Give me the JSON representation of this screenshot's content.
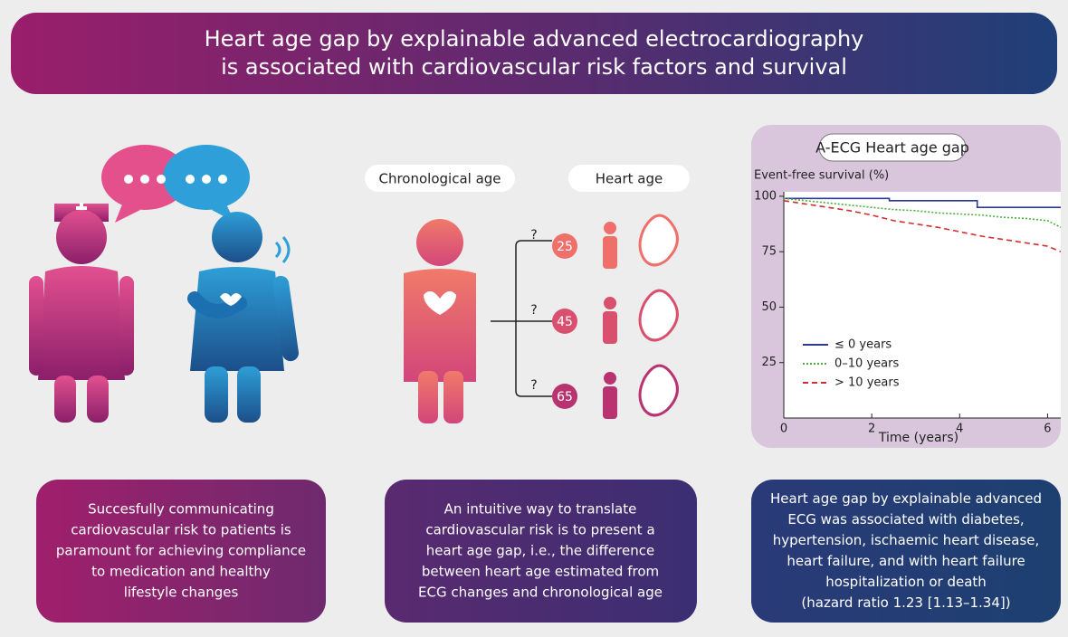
{
  "header": {
    "title_lines": [
      "Heart age gap by explainable advanced electrocardiography",
      "is associated with cardiovascular risk factors and survival"
    ]
  },
  "middle": {
    "chronological_label": "Chronological age",
    "heart_label": "Heart age",
    "branch_label": "?",
    "heart_ages": [
      25,
      45,
      65
    ]
  },
  "chart": {
    "type": "line",
    "title": "A-ECG Heart age gap",
    "y_label": "Event-free survival (%)",
    "x_label": "Time (years)",
    "xlim": [
      0,
      6.3
    ],
    "xticks": [
      0,
      2,
      4,
      6
    ],
    "ylim": [
      0,
      102
    ],
    "yticks": [
      25,
      50,
      75,
      100
    ],
    "series": [
      {
        "name": "≤ 0 years",
        "color": "#2b3a8f",
        "dash": "solid",
        "x": [
          0,
          2.4,
          2.4,
          4.4,
          4.4,
          6.3
        ],
        "values": [
          99,
          99,
          98,
          98,
          95,
          95
        ]
      },
      {
        "name": "0–10 years",
        "color": "#4caf3f",
        "dash": "dotted",
        "x": [
          0,
          0.5,
          1,
          1.5,
          2,
          2.5,
          3,
          3.5,
          4,
          4.5,
          5,
          5.5,
          6,
          6.3
        ],
        "values": [
          99,
          98,
          97,
          96,
          95,
          94,
          93.5,
          92.5,
          92,
          91.5,
          90.5,
          90,
          89,
          86
        ]
      },
      {
        "name": "> 10 years",
        "color": "#d32f2f",
        "dash": "dashed",
        "x": [
          0,
          0.5,
          1,
          1.5,
          2,
          2.5,
          3,
          3.5,
          4,
          4.5,
          5,
          5.5,
          6,
          6.3
        ],
        "values": [
          98,
          96.5,
          95,
          93.5,
          91.5,
          89,
          87.5,
          86,
          84,
          82,
          80.5,
          79,
          77.5,
          75
        ]
      }
    ]
  },
  "boxes": [
    {
      "lines": [
        "Succesfully communicating",
        "cardiovascular risk to patients is",
        "paramount for achieving compliance",
        "to medication and healthy",
        "lifestyle changes"
      ]
    },
    {
      "lines": [
        "An intuitive way to translate",
        "cardiovascular risk is to present a",
        "heart age gap, i.e., the difference",
        "between heart age estimated from",
        "ECG changes and chronological age"
      ]
    },
    {
      "lines": [
        "Heart age gap by explainable advanced",
        "ECG was associated with diabetes,",
        "hypertension, ischaemic heart disease,",
        "heart failure, and with heart failure",
        "hospitalization or death",
        "(hazard ratio 1.23 [1.13–1.34])"
      ]
    }
  ]
}
